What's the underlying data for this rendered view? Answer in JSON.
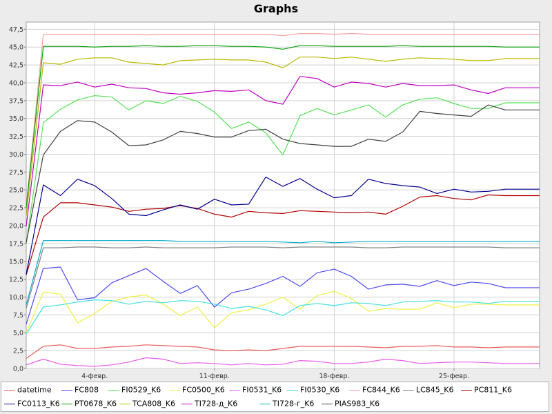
{
  "chart_data": {
    "type": "line",
    "title": "Graphs",
    "xlabel": "",
    "ylabel": "",
    "ylim": [
      0,
      48.5
    ],
    "yticks": [
      "0,0",
      "2,5",
      "5,0",
      "7,5",
      "10,0",
      "12,5",
      "15,0",
      "17,5",
      "20,0",
      "22,5",
      "25,0",
      "27,5",
      "30,0",
      "32,5",
      "35,0",
      "37,5",
      "40,0",
      "42,5",
      "45,0",
      "47,5"
    ],
    "xticks": [
      "4-февр.",
      "11-февр.",
      "18-февр.",
      "25-февр."
    ],
    "xtick_positions": [
      4,
      11,
      18,
      25
    ],
    "x": [
      0,
      1,
      2,
      3,
      4,
      5,
      6,
      7,
      8,
      9,
      10,
      11,
      12,
      13,
      14,
      15,
      16,
      17,
      18,
      19,
      20,
      21,
      22,
      23,
      24,
      25,
      26,
      27,
      28,
      29,
      30
    ],
    "xlim": [
      0,
      30
    ],
    "grid": true,
    "legend": "bottom",
    "series": [
      {
        "name": "datetime",
        "color": "#ee5a5a",
        "values": [
          1.4,
          3.1,
          3.3,
          2.8,
          2.8,
          3.0,
          3.1,
          3.3,
          3.2,
          3.1,
          3.0,
          2.6,
          2.5,
          2.6,
          2.5,
          2.8,
          3.1,
          3.1,
          3.1,
          3.1,
          3.0,
          2.9,
          3.1,
          3.1,
          3.2,
          3.0,
          3.0,
          2.9,
          3.0,
          3.0,
          3.0
        ]
      },
      {
        "name": "FC808",
        "color": "#4a4af0",
        "values": [
          6.2,
          14.0,
          14.2,
          9.6,
          9.9,
          12.0,
          13.0,
          14.0,
          12.2,
          10.5,
          11.6,
          8.6,
          10.6,
          11.1,
          11.9,
          12.9,
          11.5,
          13.4,
          13.9,
          12.9,
          11.1,
          11.7,
          11.8,
          11.5,
          12.3,
          11.6,
          12.1,
          11.9,
          11.3,
          11.3,
          11.3
        ]
      },
      {
        "name": "FI0529_K6",
        "color": "#55e055",
        "values": [
          17.5,
          34.4,
          36.3,
          37.6,
          38.2,
          38.0,
          36.2,
          37.5,
          37.1,
          38.1,
          37.4,
          35.9,
          33.6,
          34.5,
          33.0,
          29.9,
          35.4,
          36.4,
          35.5,
          36.2,
          36.9,
          35.2,
          36.9,
          37.7,
          37.9,
          37.1,
          36.4,
          36.4,
          37.2,
          37.2,
          37.2
        ]
      },
      {
        "name": "FC0500_K6",
        "color": "#f0f040",
        "values": [
          5.0,
          10.7,
          10.4,
          6.4,
          7.7,
          9.4,
          10.0,
          10.3,
          9.0,
          7.4,
          8.6,
          5.7,
          7.8,
          8.2,
          9.0,
          10.0,
          8.3,
          10.2,
          10.8,
          9.8,
          8.0,
          8.4,
          8.3,
          8.3,
          9.2,
          8.5,
          9.0,
          9.0,
          8.9,
          8.9,
          8.9
        ]
      },
      {
        "name": "FI0531_K6",
        "color": "#e85ae8",
        "values": [
          0.5,
          1.3,
          0.6,
          0.4,
          0.3,
          0.5,
          0.9,
          1.5,
          1.3,
          0.7,
          0.8,
          0.7,
          0.5,
          0.7,
          0.5,
          0.6,
          1.1,
          1.0,
          0.7,
          0.7,
          0.9,
          1.3,
          1.1,
          0.7,
          0.8,
          0.9,
          0.9,
          0.8,
          0.7,
          0.7,
          0.7
        ]
      },
      {
        "name": "FI0530_K6",
        "color": "#40e0e0",
        "values": [
          4.8,
          8.6,
          8.9,
          9.3,
          9.6,
          9.5,
          9.0,
          9.4,
          9.2,
          9.5,
          9.4,
          9.0,
          8.4,
          8.7,
          8.2,
          7.4,
          8.8,
          9.1,
          8.8,
          9.2,
          9.1,
          8.8,
          9.3,
          9.4,
          9.5,
          9.3,
          9.3,
          9.1,
          9.4,
          9.4,
          9.4
        ]
      },
      {
        "name": "FC844_K6",
        "color": "#f4a0a0",
        "values": [
          22.8,
          46.8,
          46.8,
          46.8,
          46.8,
          46.8,
          46.8,
          46.7,
          46.8,
          46.8,
          46.8,
          46.8,
          46.8,
          46.8,
          46.8,
          46.6,
          46.9,
          46.9,
          46.8,
          46.9,
          46.8,
          46.8,
          46.8,
          46.8,
          46.8,
          46.8,
          46.8,
          46.8,
          46.8,
          46.8,
          46.8
        ]
      },
      {
        "name": "LC845_K6",
        "color": "#808080",
        "values": [
          8.4,
          16.9,
          16.9,
          17.0,
          17.0,
          16.9,
          16.9,
          17.0,
          16.9,
          16.9,
          16.9,
          16.9,
          17.0,
          17.0,
          17.0,
          16.9,
          17.0,
          17.0,
          17.0,
          17.0,
          16.9,
          16.9,
          17.0,
          17.0,
          17.0,
          17.0,
          17.0,
          17.0,
          16.9,
          16.9,
          16.9
        ]
      },
      {
        "name": "PC811_K6",
        "color": "#b00000",
        "values": [
          13.1,
          21.2,
          23.2,
          23.2,
          22.9,
          22.6,
          22.0,
          22.3,
          22.4,
          22.8,
          22.4,
          21.6,
          21.2,
          22.0,
          21.8,
          21.7,
          22.1,
          22.0,
          21.9,
          21.8,
          21.9,
          21.6,
          22.7,
          24.0,
          24.2,
          23.8,
          23.6,
          24.3,
          24.2,
          24.2,
          24.2
        ]
      },
      {
        "name": "FC0113_K6",
        "color": "#000090",
        "values": [
          13.2,
          25.7,
          24.2,
          26.5,
          25.6,
          23.8,
          21.6,
          21.4,
          22.2,
          22.9,
          22.3,
          23.7,
          22.9,
          23.0,
          26.8,
          25.5,
          26.6,
          25.1,
          23.9,
          24.2,
          26.5,
          25.9,
          25.6,
          25.4,
          24.5,
          25.1,
          24.7,
          24.8,
          25.1,
          25.1,
          25.1
        ]
      },
      {
        "name": "PT0678_K6",
        "color": "#00a000",
        "values": [
          22.5,
          45.1,
          45.1,
          45.1,
          45.0,
          45.1,
          45.1,
          45.2,
          45.1,
          45.1,
          45.2,
          45.2,
          45.1,
          45.1,
          45.0,
          44.7,
          45.2,
          45.2,
          45.1,
          45.1,
          45.1,
          45.1,
          45.2,
          45.1,
          45.1,
          45.1,
          45.1,
          45.1,
          45.0,
          45.0,
          45.0
        ]
      },
      {
        "name": "TCA808_K6",
        "color": "#b8b800",
        "values": [
          21.4,
          42.8,
          42.6,
          43.3,
          43.5,
          43.5,
          42.9,
          42.7,
          42.5,
          43.1,
          43.2,
          43.3,
          43.2,
          43.2,
          42.9,
          42.1,
          43.6,
          43.6,
          43.4,
          43.6,
          43.3,
          43.0,
          43.3,
          43.5,
          43.4,
          43.3,
          43.1,
          43.1,
          43.4,
          43.4,
          43.4
        ]
      },
      {
        "name": "TI728-д_K6",
        "color": "#c000c0",
        "values": [
          19.9,
          39.7,
          39.6,
          40.1,
          39.4,
          39.8,
          39.3,
          39.2,
          38.6,
          38.4,
          38.6,
          38.9,
          38.8,
          39.0,
          37.5,
          37.0,
          40.9,
          40.6,
          39.4,
          40.1,
          39.9,
          39.4,
          39.9,
          39.6,
          39.6,
          39.7,
          39.0,
          38.5,
          39.3,
          39.3,
          39.3
        ]
      },
      {
        "name": "TI728-г_K6",
        "color": "#00a8c8",
        "values": [
          8.9,
          17.9,
          17.9,
          17.9,
          17.9,
          17.9,
          17.9,
          17.9,
          17.9,
          17.8,
          17.8,
          17.8,
          17.8,
          17.8,
          17.8,
          17.7,
          17.6,
          17.8,
          17.6,
          17.7,
          17.8,
          17.8,
          17.8,
          17.8,
          17.8,
          17.8,
          17.8,
          17.8,
          17.8,
          17.8,
          17.8
        ]
      },
      {
        "name": "PIAS983_K6",
        "color": "#404040",
        "values": [
          17.6,
          29.9,
          33.2,
          34.7,
          34.5,
          33.1,
          31.2,
          31.3,
          32.0,
          33.2,
          32.9,
          32.4,
          32.4,
          33.3,
          33.5,
          32.1,
          31.5,
          31.3,
          31.1,
          31.1,
          32.1,
          31.8,
          33.1,
          36.0,
          35.7,
          35.5,
          35.3,
          36.9,
          36.2,
          36.2,
          36.2
        ]
      }
    ]
  }
}
